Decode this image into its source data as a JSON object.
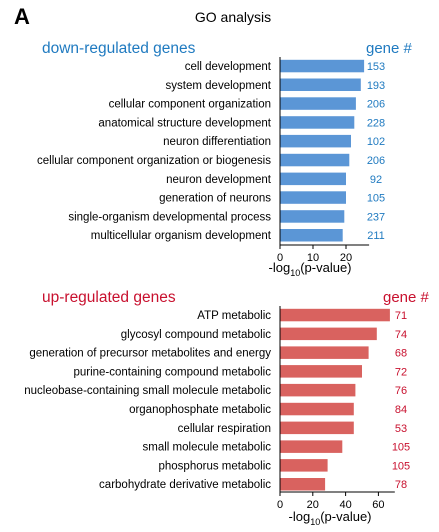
{
  "panel_letter": "A",
  "title": "GO analysis",
  "colors": {
    "down": "#1f7ac0",
    "up": "#c8102e",
    "down_bar": "#5b96d6",
    "up_bar": "#d9625f"
  },
  "chart_data": [
    {
      "type": "bar",
      "orientation": "horizontal",
      "title": "down-regulated genes",
      "count_header": "gene #",
      "categories": [
        "cell development",
        "system development",
        "cellular component organization",
        "anatomical structure development",
        "neuron differentiation",
        "cellular component organization or biogenesis",
        "neuron development",
        "generation of neurons",
        "single-organism developmental process",
        "multicellular organism development"
      ],
      "values": [
        25.5,
        24.5,
        23,
        22.5,
        21.5,
        21,
        20,
        20,
        19.5,
        19
      ],
      "gene_counts": [
        "153",
        "193",
        "206",
        "228",
        "102",
        "206",
        "92",
        "105",
        "237",
        "211"
      ],
      "xticks": [
        "0",
        "10",
        "20"
      ],
      "xlim": [
        0,
        27
      ],
      "xlabel": {
        "main": "-log",
        "sub": "10",
        "rest": "(p-value)"
      }
    },
    {
      "type": "bar",
      "orientation": "horizontal",
      "title": "up-regulated genes",
      "count_header": "gene #",
      "categories": [
        "ATP metabolic",
        "glycosyl compound metabolic",
        "generation of precursor metabolites and energy",
        "purine-containing compound metabolic",
        "nucleobase-containing small molecule metabolic",
        "organophosphate metabolic",
        "cellular respiration",
        "small molecule metabolic",
        "phosphorus metabolic",
        "carbohydrate derivative metabolic"
      ],
      "values": [
        67,
        59,
        54,
        50,
        46,
        45,
        45,
        38,
        29,
        27.5
      ],
      "gene_counts": [
        "71",
        "74",
        "68",
        "72",
        "76",
        "84",
        "53",
        "105",
        "105",
        "78"
      ],
      "xticks": [
        "0",
        "20",
        "40",
        "60"
      ],
      "xlim": [
        0,
        70
      ],
      "xlabel": {
        "main": "-log",
        "sub": "10",
        "rest": "(p-value)"
      }
    }
  ]
}
